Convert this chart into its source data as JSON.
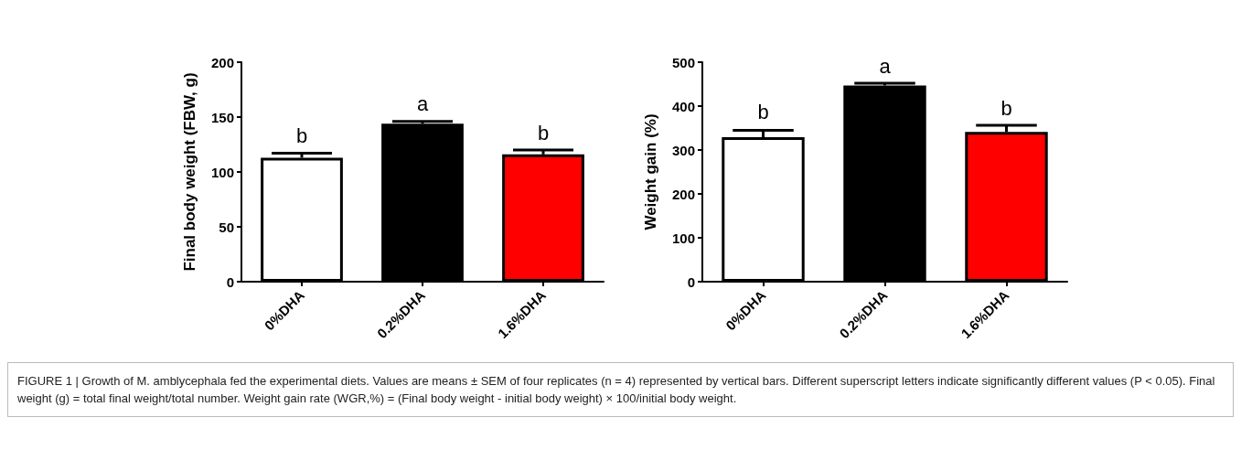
{
  "chart_data": [
    {
      "type": "bar",
      "categories": [
        "0%DHA",
        "0.2%DHA",
        "1.6%DHA"
      ],
      "values": [
        113,
        144,
        116
      ],
      "colors": [
        "#ffffff",
        "#000000",
        "#ff0000"
      ],
      "errors": [
        4,
        2,
        4
      ],
      "ylabel": "Final body weight (FBW, g)",
      "ylim": [
        0,
        200
      ],
      "yticks": [
        0,
        50,
        100,
        150,
        200
      ],
      "annotations": [
        {
          "text": "b",
          "x": "0%DHA",
          "y": 117
        },
        {
          "text": "a",
          "x": "0.2%DHA",
          "y": 146
        },
        {
          "text": "b",
          "x": "1.6%DHA",
          "y": 120
        },
        "FIGURE 1 | Growth of M. amblycephala fed the experimental diets. Values are means ± SEM of four replicates (n = 4) represented by vertical bars. Different superscript letters indicate significantly different values (P < 0.05). Final weight (g) = total final weight/total number. Weight gain rate (WGR,%) = (Final body weight - initial body weight) × 100/initial body weight."
      ]
    },
    {
      "type": "bar",
      "categories": [
        "0%DHA",
        "0.2%DHA",
        "1.6%DHA"
      ],
      "values": [
        329,
        447,
        341
      ],
      "colors": [
        "#ffffff",
        "#000000",
        "#ff0000"
      ],
      "errors": [
        16,
        5,
        15
      ],
      "ylabel": "Weight gain (%)",
      "ylim": [
        0,
        500
      ],
      "yticks": [
        0,
        100,
        200,
        300,
        400,
        500
      ],
      "annotations": [
        {
          "text": "b",
          "x": "0%DHA",
          "y": 346
        },
        {
          "text": "a",
          "x": "0.2%DHA",
          "y": 452
        },
        {
          "text": "b",
          "x": "1.6%DHA",
          "y": 356
        }
      ]
    }
  ]
}
